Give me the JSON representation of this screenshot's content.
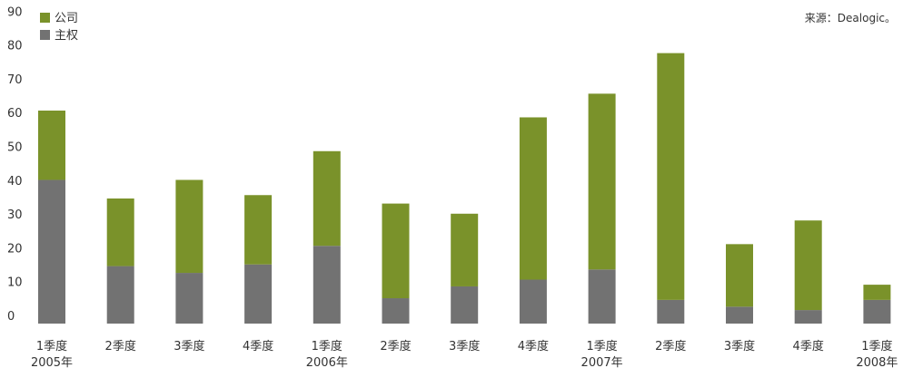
{
  "chart_data": {
    "type": "bar",
    "stacked": true,
    "categories": [
      "1季度",
      "2季度",
      "3季度",
      "4季度",
      "1季度",
      "2季度",
      "3季度",
      "4季度",
      "1季度",
      "2季度",
      "3季度",
      "4季度",
      "1季度"
    ],
    "year_labels": [
      {
        "index": 0,
        "label": "2005年"
      },
      {
        "index": 4,
        "label": "2006年"
      },
      {
        "index": 8,
        "label": "2007年"
      },
      {
        "index": 12,
        "label": "2008年"
      }
    ],
    "series": [
      {
        "name": "主权",
        "color": "#727272",
        "values": [
          42.5,
          17,
          15,
          17.5,
          23,
          7.5,
          11,
          13,
          16,
          7,
          5,
          4,
          7
        ]
      },
      {
        "name": "公司",
        "color": "#7a922a",
        "values": [
          20.5,
          20,
          27.5,
          20.5,
          28,
          28,
          21.5,
          48,
          52,
          73,
          18.5,
          26.5,
          4.5
        ]
      }
    ],
    "legend_order": [
      "公司",
      "主权"
    ],
    "y_ticks": [
      0,
      10,
      20,
      30,
      40,
      50,
      60,
      70,
      80,
      90
    ],
    "ylim": [
      0,
      90
    ],
    "grid": false,
    "legend_position": "top-left",
    "source_note": "来源：Dealogic。"
  }
}
